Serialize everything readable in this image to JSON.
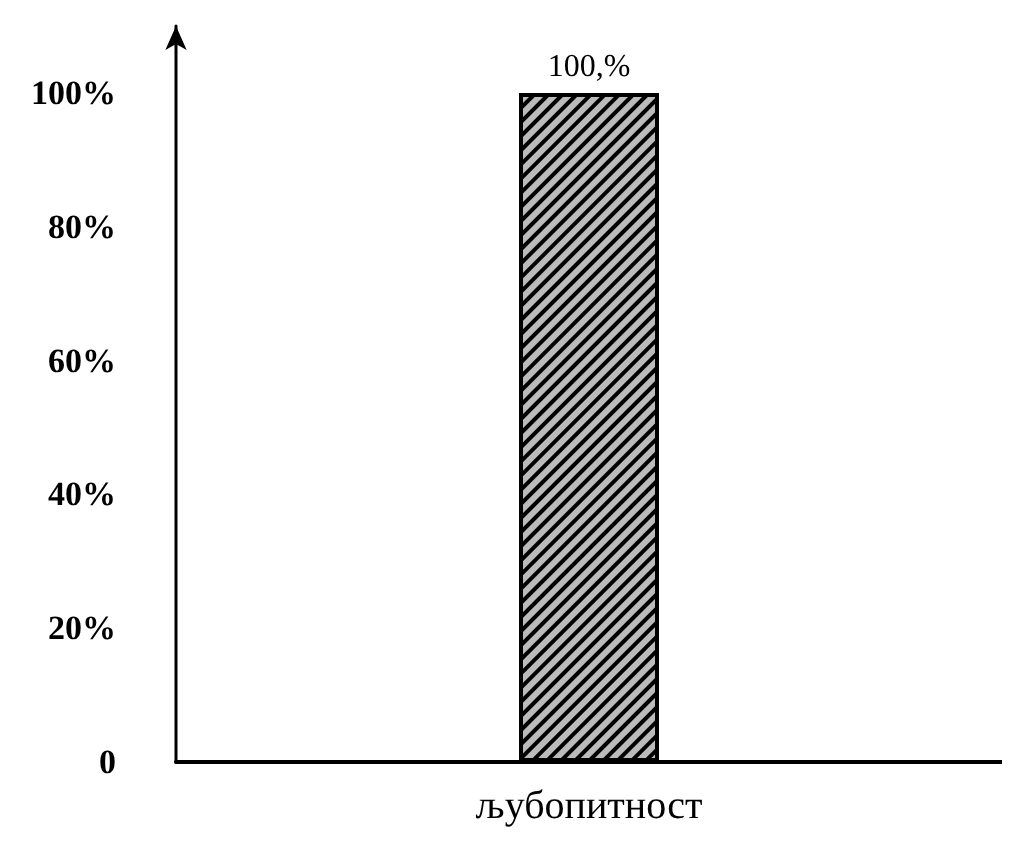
{
  "chart_data": {
    "type": "bar",
    "categories": [
      "љубопитност"
    ],
    "series": [
      {
        "color": "#bbbbbb",
        "values": [
          100
        ],
        "value_labels": [
          "100,%"
        ]
      }
    ],
    "ylim": [
      0,
      110
    ],
    "yticks": [
      {
        "value": 0,
        "label": "0"
      },
      {
        "value": 20,
        "label": "20%"
      },
      {
        "value": 40,
        "label": "40%"
      },
      {
        "value": 60,
        "label": "60%"
      },
      {
        "value": 80,
        "label": "80%"
      },
      {
        "value": 100,
        "label": "100%"
      }
    ],
    "grid": false
  }
}
